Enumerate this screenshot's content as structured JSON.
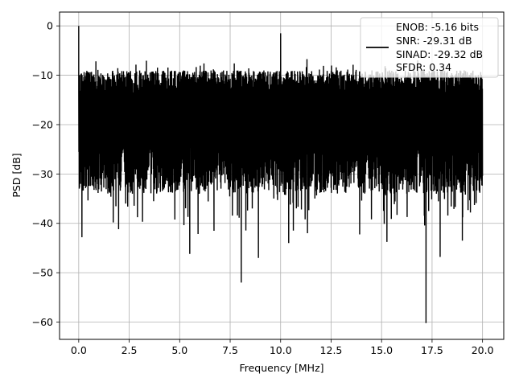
{
  "chart_data": {
    "type": "line",
    "xlabel": "Frequency [MHz]",
    "ylabel": "PSD [dB]",
    "xlim": [
      -0.95,
      21.05
    ],
    "ylim": [
      -63.5,
      2.8
    ],
    "xticks": [
      0.0,
      2.5,
      5.0,
      7.5,
      10.0,
      12.5,
      15.0,
      17.5,
      20.0
    ],
    "xtick_labels": [
      "0.0",
      "2.5",
      "5.0",
      "7.5",
      "10.0",
      "12.5",
      "15.0",
      "17.5",
      "20.0"
    ],
    "yticks": [
      0,
      -10,
      -20,
      -30,
      -40,
      -50,
      -60
    ],
    "ytick_labels": [
      "0",
      "−10",
      "−20",
      "−30",
      "−40",
      "−50",
      "−60"
    ],
    "grid": true,
    "legend_position": "top-right",
    "legend_lines": [
      "ENOB: -5.16 bits",
      "SNR: -29.31 dB",
      "SINAD: -29.32 dB",
      "SFDR: 0.34"
    ],
    "series": [
      {
        "color": "#000000",
        "x_range": [
          0.0,
          20.0
        ],
        "noise_band": {
          "peak_top_db": -6,
          "typical_top_db": -9,
          "typical_bottom_db": -30,
          "deep_bottom_db": -40
        },
        "highlights": [
          {
            "x": 0.0,
            "y": 0.0
          },
          {
            "x": 5.5,
            "y": -46.2
          },
          {
            "x": 6.7,
            "y": -41.5
          },
          {
            "x": 8.05,
            "y": -52.0
          },
          {
            "x": 8.9,
            "y": -47.0
          },
          {
            "x": 10.4,
            "y": -44.0
          },
          {
            "x": 10.0,
            "y": -1.5
          },
          {
            "x": 17.2,
            "y": -60.2
          },
          {
            "x": 17.9,
            "y": -46.8
          },
          {
            "x": 19.0,
            "y": -43.5
          }
        ]
      }
    ]
  },
  "colors": {
    "line": "#000000",
    "grid": "#b0b0b0",
    "axes": "#000000",
    "background": "#ffffff"
  }
}
